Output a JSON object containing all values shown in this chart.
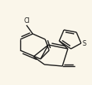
{
  "bg_color": "#faf6ea",
  "bond_color": "#1a1a1a",
  "lw": 1.0,
  "figsize": [
    1.18,
    1.08
  ],
  "dpi": 100,
  "xlim": [
    0,
    118
  ],
  "ylim": [
    0,
    108
  ]
}
